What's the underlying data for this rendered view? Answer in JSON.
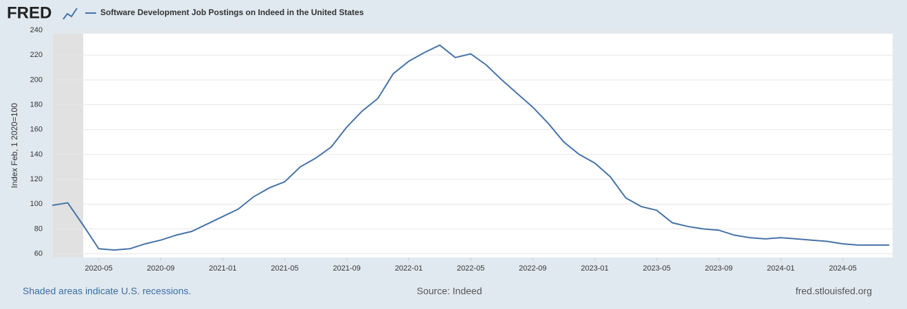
{
  "brand": "FRED",
  "chart_data": {
    "type": "line",
    "y_label": "Index Feb, 1 2020=100",
    "x": [
      "2020-02",
      "2020-03",
      "2020-04",
      "2020-05",
      "2020-06",
      "2020-07",
      "2020-08",
      "2020-09",
      "2020-10",
      "2020-11",
      "2020-12",
      "2021-01",
      "2021-02",
      "2021-03",
      "2021-04",
      "2021-05",
      "2021-06",
      "2021-07",
      "2021-08",
      "2021-09",
      "2021-10",
      "2021-11",
      "2021-12",
      "2022-01",
      "2022-02",
      "2022-03",
      "2022-04",
      "2022-05",
      "2022-06",
      "2022-07",
      "2022-08",
      "2022-09",
      "2022-10",
      "2022-11",
      "2022-12",
      "2023-01",
      "2023-02",
      "2023-03",
      "2023-04",
      "2023-05",
      "2023-06",
      "2023-07",
      "2023-08",
      "2023-09",
      "2023-10",
      "2023-11",
      "2023-12",
      "2024-01",
      "2024-02",
      "2024-03",
      "2024-04",
      "2024-05",
      "2024-06",
      "2024-07",
      "2024-08"
    ],
    "series": [
      {
        "name": "Software Development Job Postings on Indeed in the United States",
        "color": "#4572a7",
        "values": [
          99,
          101,
          83,
          64,
          63,
          64,
          68,
          71,
          75,
          78,
          84,
          90,
          96,
          106,
          113,
          118,
          130,
          137,
          146,
          162,
          175,
          185,
          205,
          215,
          222,
          228,
          218,
          221,
          212,
          200,
          189,
          178,
          165,
          150,
          140,
          133,
          122,
          105,
          98,
          95,
          85,
          82,
          80,
          79,
          75,
          73,
          72,
          73,
          72,
          71,
          70,
          68,
          67,
          67,
          67
        ]
      }
    ],
    "ylim": [
      57,
      240
    ],
    "yticks": [
      60,
      80,
      100,
      120,
      140,
      160,
      180,
      200,
      220,
      240
    ],
    "xticks": [
      "2020-05",
      "2020-09",
      "2021-01",
      "2021-05",
      "2021-09",
      "2022-01",
      "2022-05",
      "2022-09",
      "2023-01",
      "2023-05",
      "2023-09",
      "2024-01",
      "2024-05"
    ],
    "recessions": [
      [
        "2020-02",
        "2020-04"
      ]
    ],
    "grid": true
  },
  "footer": {
    "left": "Shaded areas indicate U.S. recessions.",
    "center": "Source: Indeed",
    "right": "fred.stlouisfed.org"
  }
}
